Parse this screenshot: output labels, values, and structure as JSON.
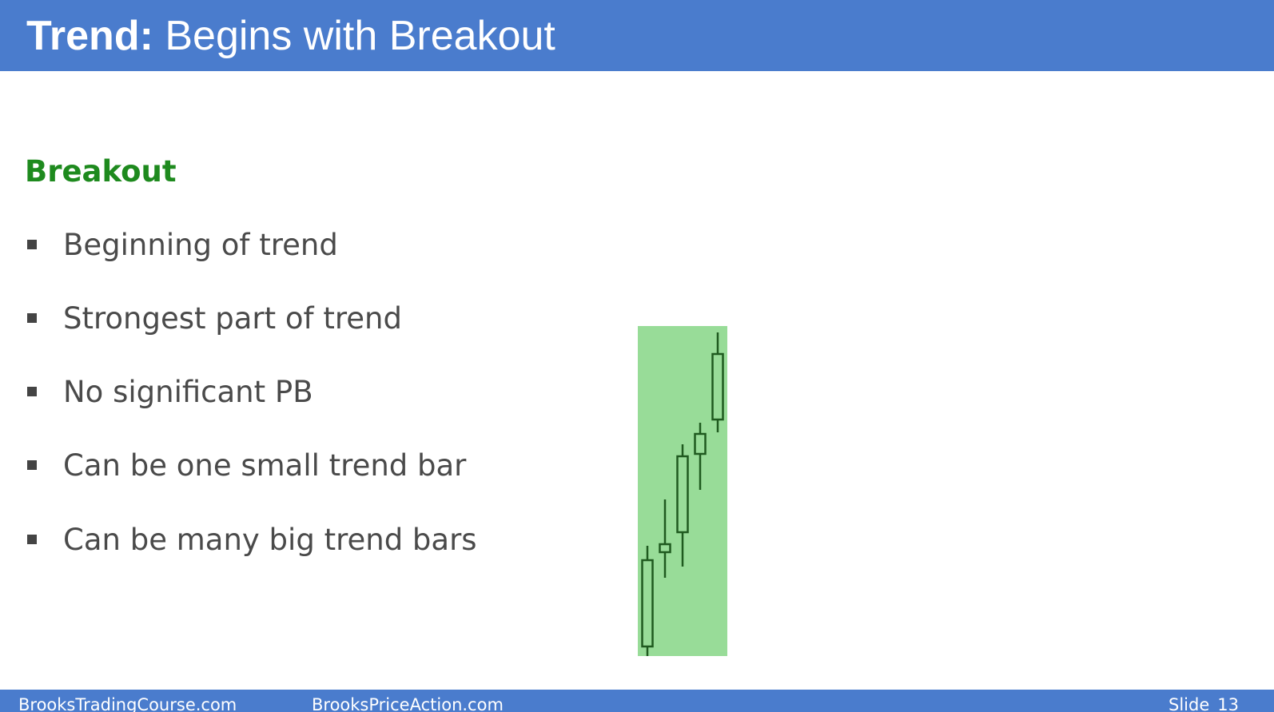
{
  "header": {
    "title_bold": "Trend:",
    "title_rest": "Begins with Breakout"
  },
  "content": {
    "heading": "Breakout",
    "bullets": [
      "Beginning of trend",
      "Strongest part of trend",
      "No significant PB",
      "Can be one small trend bar",
      "Can be many big trend bars"
    ]
  },
  "chart_data": {
    "type": "candlestick",
    "highlight_color": "#98dc98",
    "candle_color": "#1f5a1f",
    "candles": [
      {
        "open": 12,
        "close": 120,
        "high": 138,
        "low": 0
      },
      {
        "open": 130,
        "close": 140,
        "high": 196,
        "low": 98
      },
      {
        "open": 155,
        "close": 250,
        "high": 265,
        "low": 112
      },
      {
        "open": 253,
        "close": 278,
        "high": 292,
        "low": 208
      },
      {
        "open": 296,
        "close": 378,
        "high": 405,
        "low": 280
      }
    ]
  },
  "footer": {
    "left": "BrooksTradingCourse.com",
    "middle": "BrooksPriceAction.com",
    "slide_label": "Slide",
    "slide_number": "13"
  }
}
